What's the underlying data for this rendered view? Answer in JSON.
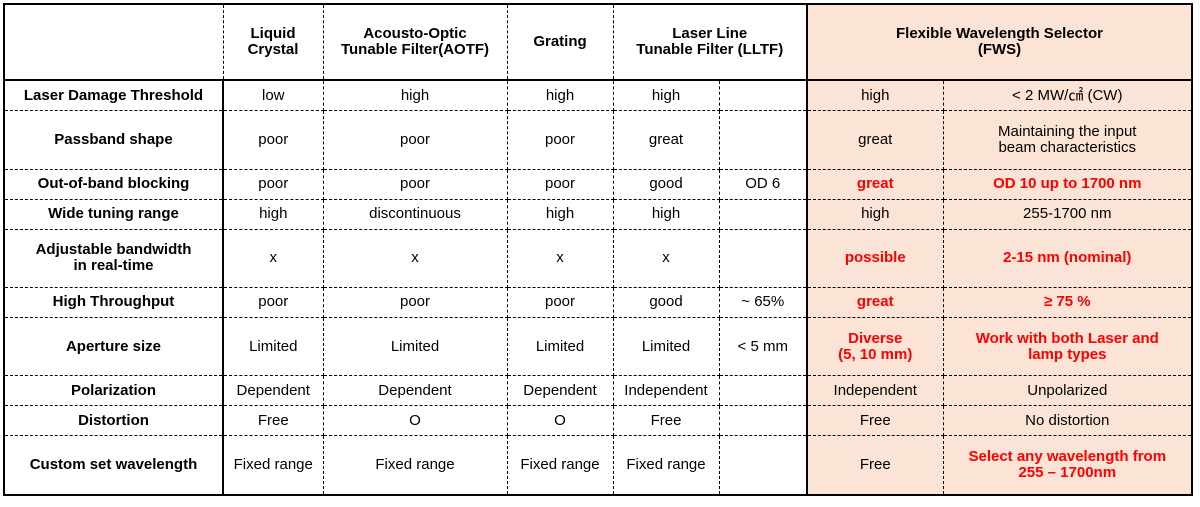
{
  "table": {
    "columns": [
      "Liquid\nCrystal",
      "Acousto-Optic\nTunable Filter(AOTF)",
      "Grating",
      "Laser Line\nTunable Filter (LLTF)",
      "Flexible Wavelength Selector\n(FWS)"
    ],
    "highlight_background": "#fbe4d5",
    "rows": [
      {
        "label": "Laser Damage Threshold",
        "cells": [
          "low",
          "high",
          "high",
          "high",
          null,
          "high",
          "< 2 MW/㎠ (CW)"
        ]
      },
      {
        "label": "Passband shape",
        "cells": [
          "poor",
          "poor",
          "poor",
          "great",
          null,
          "great",
          "Maintaining the input\nbeam characteristics"
        ]
      },
      {
        "label": "Out-of-band blocking",
        "cells": [
          "poor",
          "poor",
          "poor",
          "good",
          "OD 6",
          {
            "text": "great",
            "color": "#ff0000"
          },
          {
            "text": "OD 10 up to 1700 nm",
            "color": "#ff0000"
          }
        ]
      },
      {
        "label": "Wide tuning range",
        "cells": [
          "high",
          "discontinuous",
          "high",
          "high",
          null,
          "high",
          "255-1700 nm"
        ]
      },
      {
        "label": "Adjustable bandwidth\nin real-time",
        "cells": [
          "x",
          "x",
          "x",
          "x",
          null,
          {
            "text": "possible",
            "color": "#ff0000"
          },
          {
            "text": "2-15 nm (nominal)",
            "color": "#ff0000"
          }
        ]
      },
      {
        "label": "High Throughput",
        "cells": [
          "poor",
          "poor",
          "poor",
          "good",
          "~ 65%",
          {
            "text": "great",
            "color": "#ff0000"
          },
          {
            "text": "≥ 75 %",
            "color": "#ff0000"
          }
        ]
      },
      {
        "label": "Aperture size",
        "cells": [
          "Limited",
          "Limited",
          "Limited",
          "Limited",
          "< 5 mm",
          {
            "text": "Diverse\n(5, 10 mm)",
            "color": "#ff0000"
          },
          {
            "text": "Work with both Laser and\nlamp types",
            "color": "#ff0000"
          }
        ]
      },
      {
        "label": "Polarization",
        "cells": [
          "Dependent",
          "Dependent",
          "Dependent",
          "Independent",
          null,
          "Independent",
          "Unpolarized"
        ]
      },
      {
        "label": "Distortion",
        "cells": [
          "Free",
          "O",
          "O",
          "Free",
          null,
          "Free",
          "No distortion"
        ]
      },
      {
        "label": "Custom set wavelength",
        "cells": [
          "Fixed range",
          "Fixed range",
          "Fixed range",
          "Fixed range",
          null,
          "Free",
          {
            "text": "Select any wavelength from\n255 – 1700nm",
            "color": "#ff0000"
          }
        ]
      }
    ]
  }
}
